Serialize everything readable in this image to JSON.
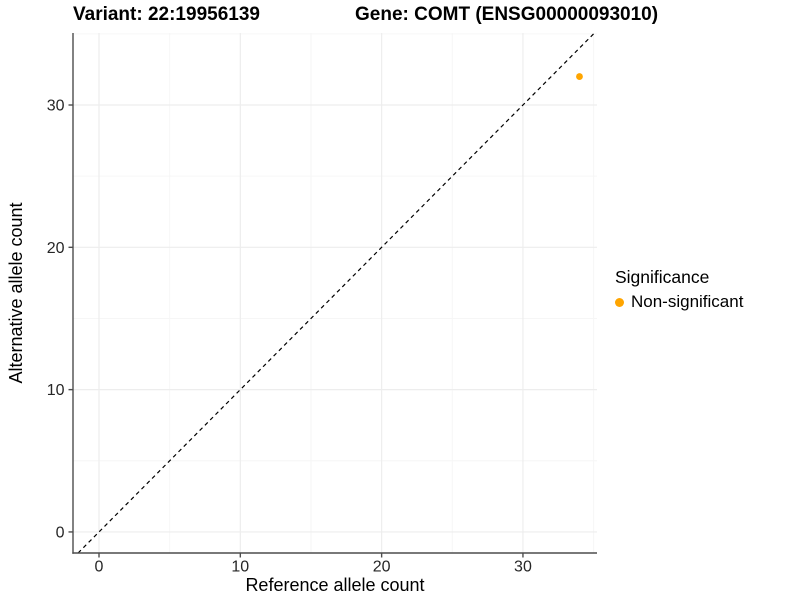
{
  "header": {
    "title_left": "Variant: 22:19956139",
    "title_right": "Gene: COMT (ENSG00000093010)"
  },
  "chart_data": {
    "type": "scatter",
    "titles": {
      "left": "Variant: 22:19956139",
      "right": "Gene: COMT (ENSG00000093010)"
    },
    "xlabel": "Reference allele count",
    "ylabel": "Alternative allele count",
    "xlim": [
      -1.84,
      35.24
    ],
    "ylim": [
      -1.48,
      35.06
    ],
    "xticks": [
      0,
      10,
      20,
      30
    ],
    "yticks": [
      0,
      10,
      20,
      30
    ],
    "minor_xticks": [
      5,
      15,
      25,
      35
    ],
    "minor_yticks": [
      5,
      15,
      25,
      35
    ],
    "grid": "major and minor gridlines, very light gray, white panel",
    "reference_line": {
      "type": "identity y=x diagonal",
      "style": "dashed",
      "color": "#000000"
    },
    "series": [
      {
        "name": "Non-significant",
        "color": "#FFA500",
        "points": [
          [
            34,
            32
          ]
        ],
        "point_radius": 3.4
      }
    ],
    "legend": {
      "title": "Significance",
      "position": "right",
      "entries": [
        {
          "label": "Non-significant",
          "color": "#FFA500"
        }
      ]
    },
    "colors": {
      "axis_line": "#4d4d4d",
      "grid_major": "#ededed",
      "grid_minor": "#f6f6f6",
      "tick_text": "#262626",
      "axis_title_text": "#000000"
    }
  }
}
